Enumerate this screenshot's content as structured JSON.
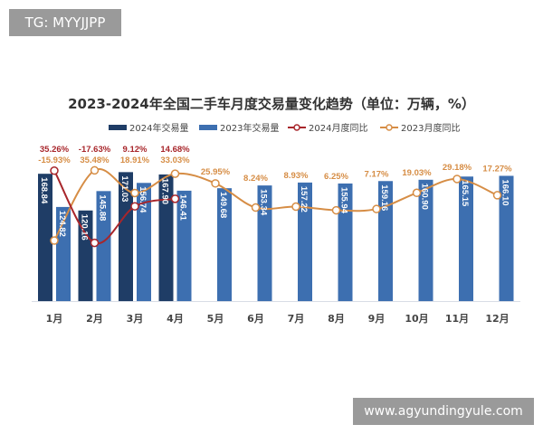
{
  "watermarks": {
    "top_left": "TG: MYYJJPP",
    "bottom_right": "www.agyundingyule.com"
  },
  "chart_data": {
    "type": "bar",
    "title": "2023-2024年全国二手车月度交易量变化趋势（单位：万辆，%）",
    "categories": [
      "1月",
      "2月",
      "3月",
      "4月",
      "5月",
      "6月",
      "7月",
      "8月",
      "9月",
      "10月",
      "11月",
      "12月"
    ],
    "series": [
      {
        "name": "2024年交易量",
        "type": "bar",
        "color": "#1f3d66",
        "values": [
          168.84,
          120.16,
          171.03,
          167.9,
          null,
          null,
          null,
          null,
          null,
          null,
          null,
          null
        ],
        "labels": [
          "168.84",
          "120.16",
          "171.03",
          "167.90"
        ]
      },
      {
        "name": "2023年交易量",
        "type": "bar",
        "color": "#3d6fb0",
        "values": [
          124.82,
          145.88,
          156.74,
          146.41,
          149.68,
          153.34,
          157.22,
          155.94,
          159.16,
          160.9,
          165.15,
          166.1
        ],
        "labels": [
          "124.82",
          "145.88",
          "156.74",
          "146.41",
          "149.68",
          "153.34",
          "157.22",
          "155.94",
          "159.16",
          "160.90",
          "165.15",
          "166.10"
        ]
      },
      {
        "name": "2024月度同比",
        "type": "line",
        "color": "#a8262b",
        "values": [
          35.26,
          -17.63,
          9.12,
          14.68,
          null,
          null,
          null,
          null,
          null,
          null,
          null,
          null
        ],
        "labels": [
          "35.26%",
          "-17.63%",
          "9.12%",
          "14.68%"
        ]
      },
      {
        "name": "2023月度同比",
        "type": "line",
        "color": "#d68d45",
        "values": [
          -15.93,
          35.48,
          18.91,
          33.03,
          25.95,
          8.24,
          8.93,
          6.25,
          7.17,
          19.03,
          29.18,
          17.27
        ],
        "labels": [
          "-15.93%",
          "35.48%",
          "18.91%",
          "33.03%",
          "25.95%",
          "8.24%",
          "8.93%",
          "6.25%",
          "7.17%",
          "19.03%",
          "29.18%",
          "17.27%"
        ]
      }
    ],
    "legend": "top",
    "grid": false
  }
}
